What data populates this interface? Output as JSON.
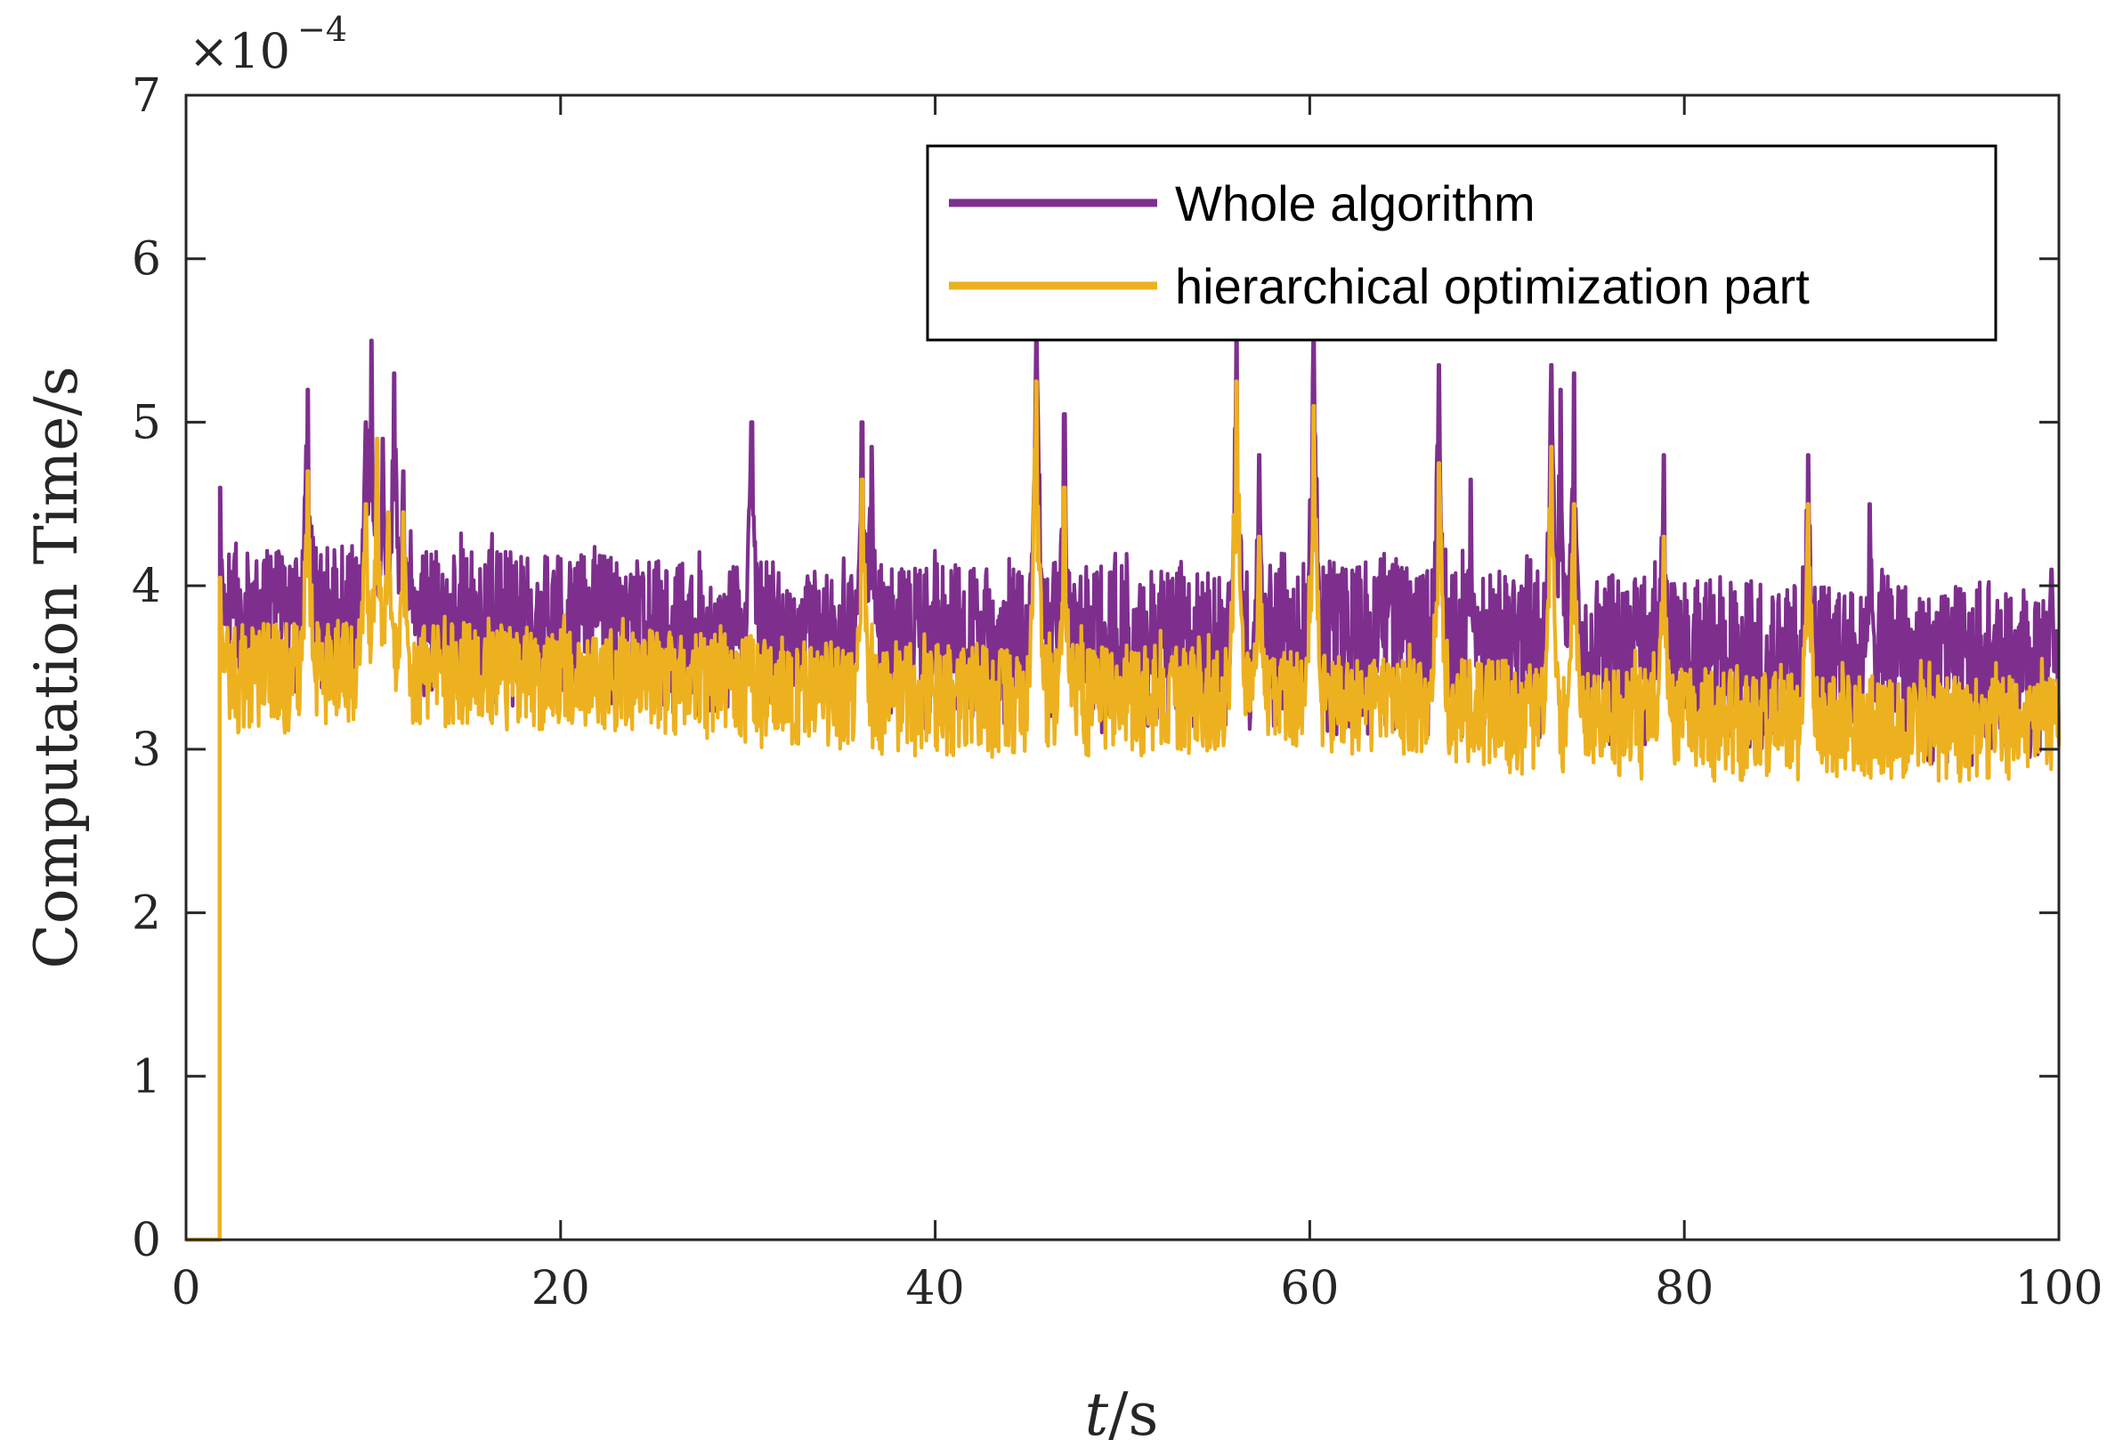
{
  "chart_data": {
    "type": "line",
    "title": "",
    "xlabel_var": "t",
    "xlabel_unit": "/s",
    "ylabel": "Computation Time/s",
    "y_exponent_prefix": "×10",
    "y_exponent_power": "−4",
    "xlim": [
      0,
      100
    ],
    "ylim": [
      0,
      7
    ],
    "xticks": [
      0,
      20,
      40,
      60,
      80,
      100
    ],
    "xtick_labels": [
      "0",
      "20",
      "40",
      "60",
      "80",
      "100"
    ],
    "yticks": [
      0,
      1,
      2,
      3,
      4,
      5,
      6,
      7
    ],
    "ytick_labels": [
      "0",
      "1",
      "2",
      "3",
      "4",
      "5",
      "6",
      "7"
    ],
    "grid": false,
    "legend_position": "top-right",
    "legend": [
      "Whole algorithm",
      "hierarchical optimization part"
    ],
    "colors": {
      "whole": "#7E2F8E",
      "hier": "#EDB120",
      "axis": "#262626",
      "legend_border": "#000000"
    },
    "start_time": 1.8,
    "series": [
      {
        "name": "Whole algorithm",
        "color": "#7E2F8E",
        "envelope_x": [
          0,
          10,
          20,
          30,
          40,
          50,
          60,
          65,
          70,
          80,
          90,
          100
        ],
        "band_low": [
          3.35,
          3.35,
          3.2,
          3.2,
          3.1,
          3.1,
          3.1,
          3.05,
          3.0,
          2.95,
          2.9,
          2.9
        ],
        "band_high": [
          4.2,
          4.25,
          4.2,
          4.15,
          4.15,
          4.15,
          4.15,
          4.15,
          4.1,
          4.05,
          4.0,
          4.0
        ],
        "peaks": [
          {
            "t": 1.8,
            "v": 4.6
          },
          {
            "t": 6.5,
            "v": 5.2
          },
          {
            "t": 9.6,
            "v": 5.0
          },
          {
            "t": 9.9,
            "v": 5.5
          },
          {
            "t": 10.5,
            "v": 4.9
          },
          {
            "t": 11.1,
            "v": 5.3
          },
          {
            "t": 11.6,
            "v": 4.7
          },
          {
            "t": 30.2,
            "v": 5.0
          },
          {
            "t": 36.1,
            "v": 5.0
          },
          {
            "t": 36.6,
            "v": 4.85
          },
          {
            "t": 45.4,
            "v": 5.55
          },
          {
            "t": 46.9,
            "v": 5.05
          },
          {
            "t": 56.1,
            "v": 5.55
          },
          {
            "t": 57.3,
            "v": 4.8
          },
          {
            "t": 60.2,
            "v": 5.55
          },
          {
            "t": 66.9,
            "v": 5.35
          },
          {
            "t": 68.6,
            "v": 4.65
          },
          {
            "t": 72.9,
            "v": 5.35
          },
          {
            "t": 73.4,
            "v": 5.2
          },
          {
            "t": 74.1,
            "v": 5.3
          },
          {
            "t": 78.9,
            "v": 4.8
          },
          {
            "t": 86.6,
            "v": 4.8
          },
          {
            "t": 89.9,
            "v": 4.5
          },
          {
            "t": 99.6,
            "v": 4.1
          }
        ]
      },
      {
        "name": "hierarchical optimization part",
        "color": "#EDB120",
        "envelope_x": [
          0,
          10,
          20,
          30,
          40,
          50,
          60,
          65,
          70,
          80,
          90,
          100
        ],
        "band_low": [
          3.1,
          3.1,
          3.1,
          3.0,
          2.95,
          2.95,
          2.95,
          2.95,
          2.85,
          2.8,
          2.8,
          2.8
        ],
        "band_high": [
          3.75,
          3.8,
          3.75,
          3.7,
          3.65,
          3.65,
          3.6,
          3.55,
          3.55,
          3.5,
          3.45,
          3.45
        ],
        "peaks": [
          {
            "t": 1.8,
            "v": 4.05
          },
          {
            "t": 6.5,
            "v": 4.7
          },
          {
            "t": 9.6,
            "v": 4.5
          },
          {
            "t": 10.2,
            "v": 4.9
          },
          {
            "t": 10.8,
            "v": 4.45
          },
          {
            "t": 11.6,
            "v": 4.45
          },
          {
            "t": 36.1,
            "v": 4.65
          },
          {
            "t": 45.4,
            "v": 5.25
          },
          {
            "t": 46.9,
            "v": 4.6
          },
          {
            "t": 56.1,
            "v": 5.25
          },
          {
            "t": 57.3,
            "v": 4.3
          },
          {
            "t": 60.2,
            "v": 5.1
          },
          {
            "t": 66.9,
            "v": 4.75
          },
          {
            "t": 72.9,
            "v": 4.85
          },
          {
            "t": 74.1,
            "v": 4.5
          },
          {
            "t": 78.9,
            "v": 4.3
          },
          {
            "t": 86.6,
            "v": 4.5
          }
        ]
      }
    ]
  }
}
